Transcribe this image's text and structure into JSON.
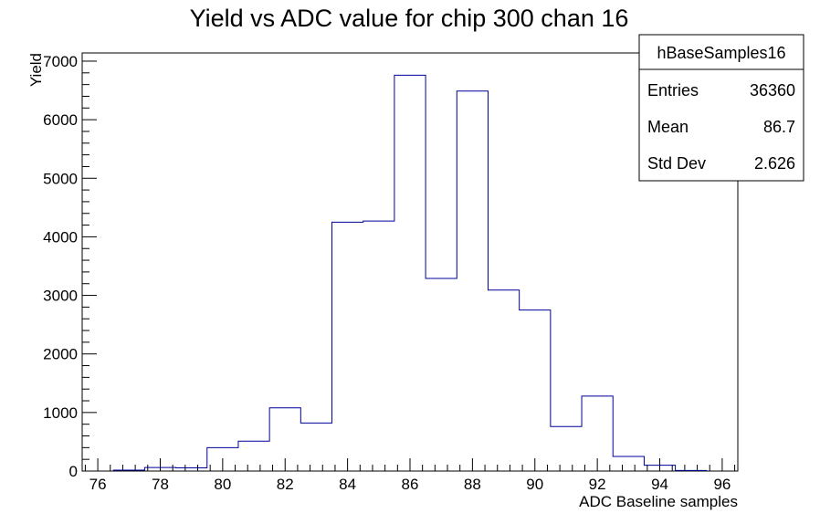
{
  "chart_data": {
    "type": "histogram",
    "title": "Yield vs ADC value for chip 300 chan 16",
    "xlabel": "ADC Baseline samples",
    "ylabel": "Yield",
    "xlim": [
      75.5,
      96.5
    ],
    "ylim": [
      0,
      7140
    ],
    "x_ticks": [
      76,
      78,
      80,
      82,
      84,
      86,
      88,
      90,
      92,
      94,
      96
    ],
    "y_ticks": [
      0,
      1000,
      2000,
      3000,
      4000,
      5000,
      6000,
      7000
    ],
    "bins": [
      {
        "low": 76.5,
        "high": 77.5,
        "value": 15
      },
      {
        "low": 77.5,
        "high": 78.5,
        "value": 60
      },
      {
        "low": 78.5,
        "high": 79.5,
        "value": 55
      },
      {
        "low": 79.5,
        "high": 80.5,
        "value": 400
      },
      {
        "low": 80.5,
        "high": 81.5,
        "value": 510
      },
      {
        "low": 81.5,
        "high": 82.5,
        "value": 1080
      },
      {
        "low": 82.5,
        "high": 83.5,
        "value": 820
      },
      {
        "low": 83.5,
        "high": 84.5,
        "value": 4250
      },
      {
        "low": 84.5,
        "high": 85.5,
        "value": 4270
      },
      {
        "low": 85.5,
        "high": 86.5,
        "value": 6760
      },
      {
        "low": 86.5,
        "high": 87.5,
        "value": 3290
      },
      {
        "low": 87.5,
        "high": 88.5,
        "value": 6490
      },
      {
        "low": 88.5,
        "high": 89.5,
        "value": 3090
      },
      {
        "low": 89.5,
        "high": 90.5,
        "value": 2750
      },
      {
        "low": 90.5,
        "high": 91.5,
        "value": 760
      },
      {
        "low": 91.5,
        "high": 92.5,
        "value": 1280
      },
      {
        "low": 92.5,
        "high": 93.5,
        "value": 250
      },
      {
        "low": 93.5,
        "high": 94.5,
        "value": 100
      },
      {
        "low": 94.5,
        "high": 95.5,
        "value": 10
      }
    ],
    "line_color": "#000099",
    "grid": false,
    "stats_box": {
      "name": "hBaseSamples16",
      "rows": [
        {
          "label": "Entries",
          "value": "36360"
        },
        {
          "label": "Mean",
          "value": "86.7"
        },
        {
          "label": "Std Dev",
          "value": "2.626"
        }
      ]
    }
  }
}
